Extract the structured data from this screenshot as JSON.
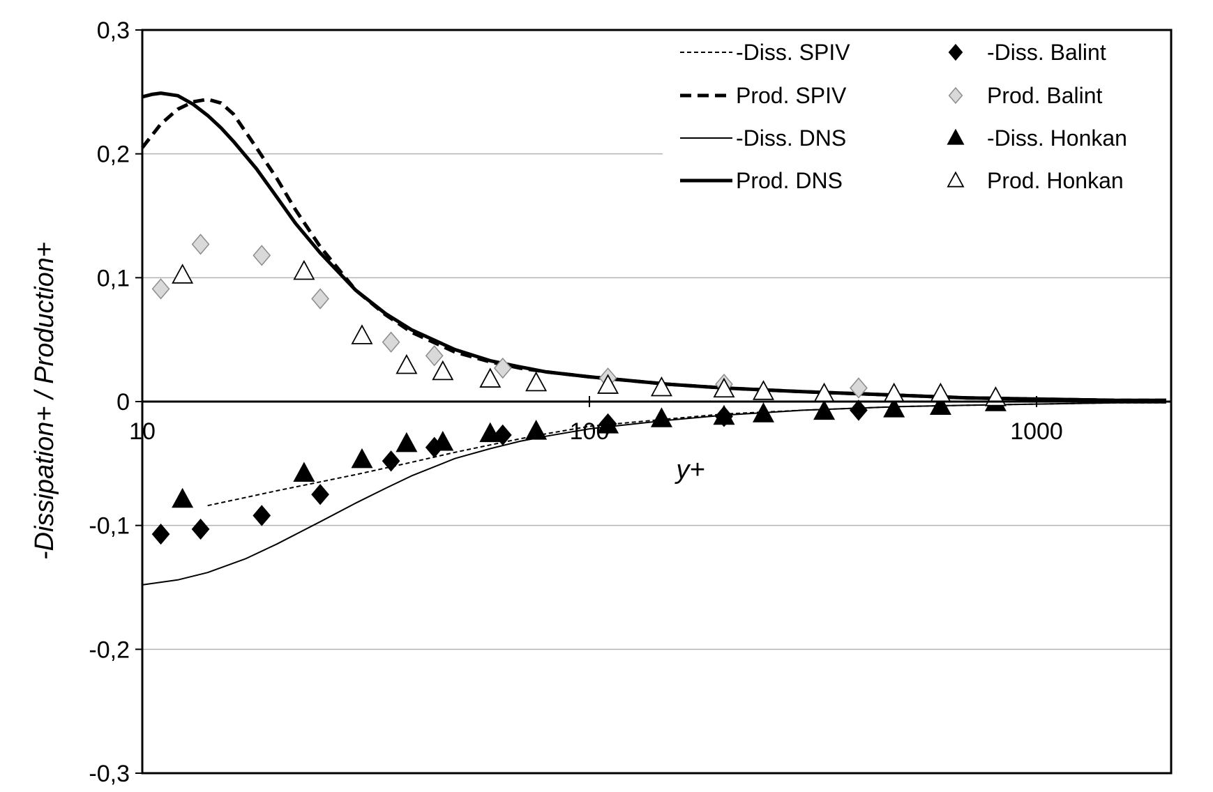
{
  "chart_data": {
    "type": "scatter",
    "title": "",
    "xlabel": "y+",
    "ylabel": "-Dissipation+ / Production+",
    "xscale": "log",
    "xlim": [
      10,
      2000
    ],
    "ylim": [
      -0.3,
      0.3
    ],
    "x_ticks": [
      10,
      100,
      1000
    ],
    "x_tick_labels": [
      "10",
      "100",
      "1000"
    ],
    "y_ticks": [
      -0.3,
      -0.2,
      -0.1,
      0,
      0.1,
      0.2,
      0.3
    ],
    "y_tick_labels": [
      "-0,3",
      "-0,2",
      "-0,1",
      "0",
      "0,1",
      "0,2",
      "0,3"
    ],
    "grid": "horizontal",
    "legend_position": "top-right",
    "series": [
      {
        "name": "-Diss. SPIV",
        "kind": "line",
        "style": "dotted-thin",
        "color": "#000000",
        "x": [
          14,
          20,
          30,
          40,
          50,
          60,
          70,
          80,
          100,
          150,
          200,
          300,
          500,
          700,
          1000,
          1500,
          1950
        ],
        "y": [
          -0.084,
          -0.072,
          -0.059,
          -0.049,
          -0.041,
          -0.035,
          -0.03,
          -0.026,
          -0.02,
          -0.014,
          -0.01,
          -0.007,
          -0.004,
          -0.003,
          -0.002,
          -0.001,
          -0.001
        ]
      },
      {
        "name": "Prod. SPIV",
        "kind": "line",
        "style": "dashed-thick",
        "color": "#000000",
        "x": [
          10,
          11,
          12,
          13,
          14,
          15,
          16,
          18,
          20,
          22,
          25,
          30,
          35,
          40,
          50,
          60,
          70,
          80,
          100,
          150,
          200,
          300,
          500,
          700,
          1000,
          1500,
          1950
        ],
        "y": [
          0.205,
          0.224,
          0.236,
          0.242,
          0.244,
          0.241,
          0.232,
          0.205,
          0.18,
          0.155,
          0.125,
          0.09,
          0.07,
          0.056,
          0.04,
          0.032,
          0.027,
          0.024,
          0.02,
          0.014,
          0.011,
          0.008,
          0.005,
          0.003,
          0.002,
          0.001,
          0.001
        ]
      },
      {
        "name": "-Diss. DNS",
        "kind": "line",
        "style": "solid-thin",
        "color": "#000000",
        "x": [
          10,
          12,
          14,
          17,
          20,
          25,
          30,
          35,
          40,
          50,
          60,
          70,
          80,
          100,
          150,
          200,
          300,
          500,
          700,
          1000,
          1500,
          1950
        ],
        "y": [
          -0.148,
          -0.144,
          -0.138,
          -0.127,
          -0.115,
          -0.097,
          -0.082,
          -0.07,
          -0.06,
          -0.046,
          -0.038,
          -0.032,
          -0.028,
          -0.022,
          -0.015,
          -0.011,
          -0.007,
          -0.004,
          -0.003,
          -0.002,
          -0.001,
          -0.001
        ]
      },
      {
        "name": "Prod. DNS",
        "kind": "line",
        "style": "solid-thick",
        "color": "#000000",
        "x": [
          10,
          10.5,
          11,
          12,
          13,
          14,
          15,
          16,
          18,
          20,
          22,
          25,
          30,
          35,
          40,
          50,
          60,
          70,
          80,
          100,
          150,
          200,
          300,
          500,
          700,
          1000,
          1500,
          1950
        ],
        "y": [
          0.246,
          0.248,
          0.249,
          0.247,
          0.24,
          0.231,
          0.221,
          0.21,
          0.188,
          0.165,
          0.144,
          0.12,
          0.09,
          0.071,
          0.058,
          0.042,
          0.033,
          0.028,
          0.024,
          0.02,
          0.014,
          0.011,
          0.008,
          0.005,
          0.003,
          0.002,
          0.001,
          0.001
        ]
      },
      {
        "name": "-Diss. Balint",
        "kind": "marker",
        "marker": "diamond-filled",
        "color": "#000000",
        "x": [
          11,
          13.5,
          18.5,
          25,
          36,
          45,
          64,
          110,
          200,
          400
        ],
        "y": [
          -0.107,
          -0.103,
          -0.092,
          -0.075,
          -0.048,
          -0.037,
          -0.027,
          -0.018,
          -0.012,
          -0.007
        ]
      },
      {
        "name": "Prod. Balint",
        "kind": "marker",
        "marker": "diamond-open",
        "color": "#d0d0d0",
        "x": [
          11,
          13.5,
          18.5,
          25,
          36,
          45,
          64,
          110,
          200,
          400
        ],
        "y": [
          0.091,
          0.127,
          0.118,
          0.083,
          0.048,
          0.037,
          0.027,
          0.019,
          0.014,
          0.011
        ]
      },
      {
        "name": "-Diss. Honkan",
        "kind": "marker",
        "marker": "triangle-filled",
        "color": "#000000",
        "x": [
          12.3,
          23,
          31,
          39,
          47,
          60,
          76,
          110,
          145,
          200,
          245,
          335,
          480,
          610,
          810
        ],
        "y": [
          -0.079,
          -0.058,
          -0.047,
          -0.034,
          -0.033,
          -0.026,
          -0.024,
          -0.019,
          -0.014,
          -0.012,
          -0.01,
          -0.008,
          -0.006,
          -0.004,
          -0.001
        ]
      },
      {
        "name": "Prod. Honkan",
        "kind": "marker",
        "marker": "triangle-open",
        "color": "#000000",
        "x": [
          12.3,
          23,
          31,
          39,
          47,
          60,
          76,
          110,
          145,
          200,
          245,
          335,
          480,
          610,
          810
        ],
        "y": [
          0.102,
          0.105,
          0.053,
          0.029,
          0.024,
          0.018,
          0.015,
          0.013,
          0.011,
          0.01,
          0.008,
          0.006,
          0.006,
          0.006,
          0.003
        ]
      }
    ]
  }
}
